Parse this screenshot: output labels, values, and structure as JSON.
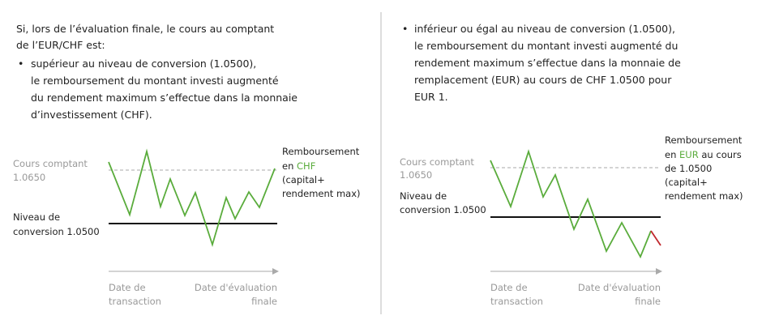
{
  "left": {
    "intro": [
      "Si, lors de l’évaluation finale, le cours au comptant",
      "de l’EUR/CHF est:"
    ],
    "bullet": [
      "supérieur au niveau de conversion (1.0500),",
      "le remboursement du montant investi augmenté",
      "du rendement maximum s’effectue dans la monnaie",
      "d’investissement (CHF)."
    ],
    "diagram": {
      "spot": [
        "Cours comptant",
        "1.0650"
      ],
      "conversion": [
        "Niveau de",
        "conversion 1.0500"
      ],
      "repayment": {
        "line1": "Remboursement",
        "line2_prefix": "en ",
        "currency": "CHF",
        "rest": [
          "(capital+",
          "rendement max)"
        ]
      },
      "start": [
        "Date de",
        "transaction"
      ],
      "end": [
        "Date d'évaluation",
        "finale"
      ]
    }
  },
  "right": {
    "bullet": [
      "inférieur ou égal au niveau de conversion (1.0500),",
      "le remboursement du montant investi augmenté du",
      "rendement maximum s’effectue dans la monnaie de",
      "remplacement (EUR) au cours de CHF 1.0500 pour",
      "EUR 1."
    ],
    "diagram": {
      "spot": [
        "Cours comptant",
        "1.0650"
      ],
      "conversion": [
        "Niveau de",
        "conversion 1.0500"
      ],
      "repayment": {
        "line1": "Remboursement",
        "line2_prefix": "en ",
        "currency": "EUR",
        "line2_suffix": " au cours",
        "rest": [
          "de 1.0500",
          "(capital+",
          "rendement max)"
        ]
      },
      "start": [
        "Date de",
        "transaction"
      ],
      "end": [
        "Date d'évaluation",
        "finale"
      ]
    }
  }
}
